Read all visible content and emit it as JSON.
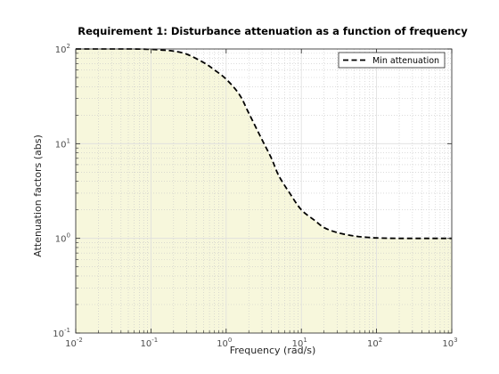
{
  "chart_data": {
    "type": "line",
    "title": "Requirement 1: Disturbance attenuation as a function of frequency",
    "xlabel": "Frequency (rad/s)",
    "ylabel": "Attenuation factors (abs)",
    "xscale": "log",
    "yscale": "log",
    "xlim": [
      0.01,
      1000
    ],
    "ylim": [
      0.1,
      100
    ],
    "x_ticks": [
      {
        "base": "10",
        "exp": "-2",
        "value": 0.01
      },
      {
        "base": "10",
        "exp": "-1",
        "value": 0.1
      },
      {
        "base": "10",
        "exp": "0",
        "value": 1
      },
      {
        "base": "10",
        "exp": "1",
        "value": 10
      },
      {
        "base": "10",
        "exp": "2",
        "value": 100
      },
      {
        "base": "10",
        "exp": "3",
        "value": 1000
      }
    ],
    "y_ticks": [
      {
        "base": "10",
        "exp": "-1",
        "value": 0.1
      },
      {
        "base": "10",
        "exp": "0",
        "value": 1
      },
      {
        "base": "10",
        "exp": "1",
        "value": 10
      },
      {
        "base": "10",
        "exp": "2",
        "value": 100
      }
    ],
    "grid": true,
    "legend_position": "top-right",
    "series": [
      {
        "name": "Min attenuation",
        "style": "dashed",
        "color": "#000000",
        "x": [
          0.01,
          0.05,
          0.1,
          0.15,
          0.2,
          0.3,
          0.5,
          0.7,
          1,
          1.5,
          2,
          3,
          4,
          5,
          7,
          10,
          15,
          20,
          30,
          50,
          70,
          100,
          200,
          500,
          1000
        ],
        "y": [
          100,
          100,
          99,
          97,
          95,
          88,
          72,
          60,
          48,
          33,
          21,
          11,
          7,
          4.6,
          3,
          2,
          1.55,
          1.3,
          1.15,
          1.06,
          1.03,
          1.01,
          1.0,
          1.0,
          1.0
        ]
      }
    ],
    "shaded_region": {
      "description": "region below curve",
      "color": "#f7f7dc"
    }
  }
}
